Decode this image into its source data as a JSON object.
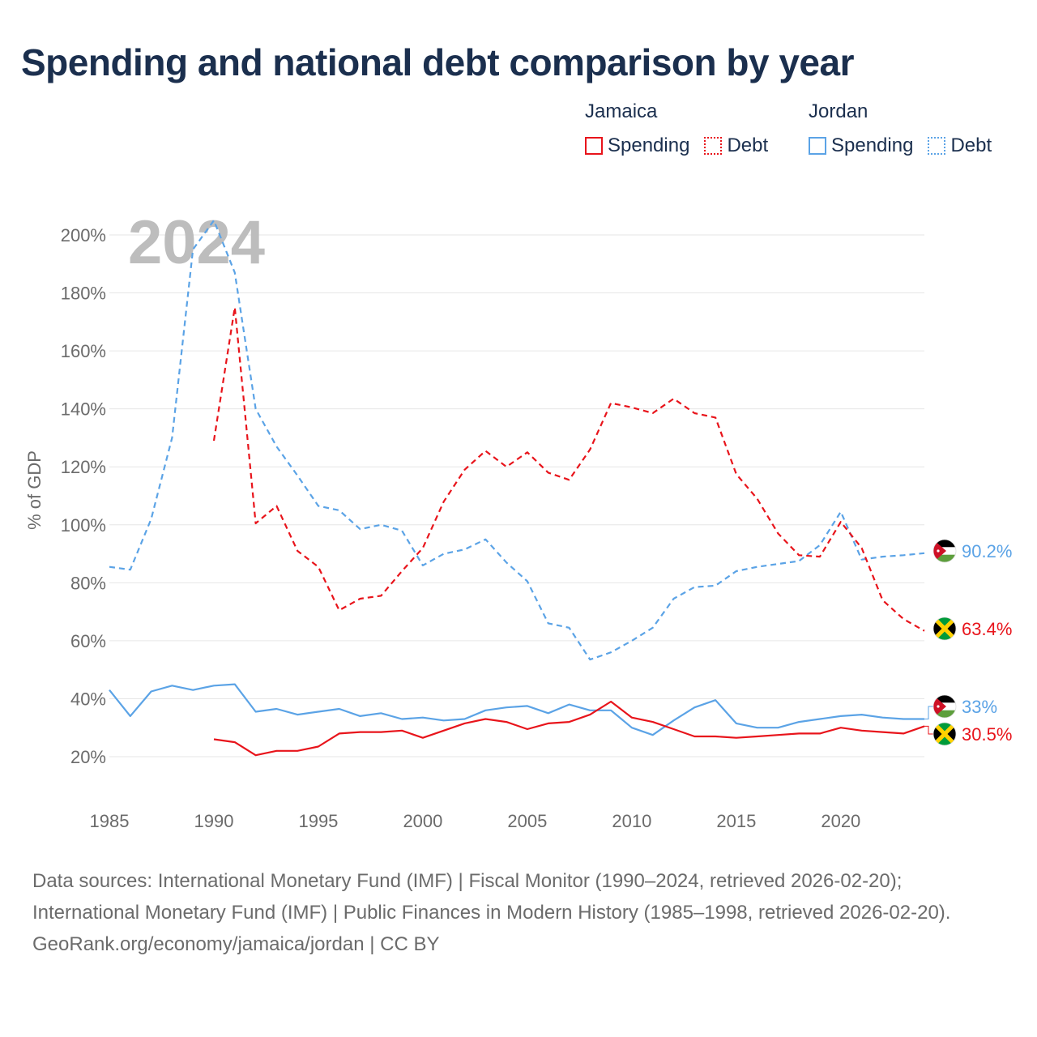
{
  "title": "Spending and national debt comparison by year",
  "legend": {
    "groups": [
      {
        "name": "Jamaica",
        "items": [
          {
            "label": "Spending",
            "color": "#e8141b",
            "style": "solid"
          },
          {
            "label": "Debt",
            "color": "#e8141b",
            "style": "dotted"
          }
        ]
      },
      {
        "name": "Jordan",
        "items": [
          {
            "label": "Spending",
            "color": "#5ba3e6",
            "style": "solid"
          },
          {
            "label": "Debt",
            "color": "#5ba3e6",
            "style": "dotted"
          }
        ]
      }
    ]
  },
  "chart_data": {
    "type": "line",
    "year_label": "2024",
    "ylabel": "% of GDP",
    "xlabel": "",
    "xlim": [
      1985,
      2024
    ],
    "ylim": [
      10,
      210
    ],
    "x_ticks": [
      1985,
      1990,
      1995,
      2000,
      2005,
      2010,
      2015,
      2020
    ],
    "y_ticks": [
      20,
      40,
      60,
      80,
      100,
      120,
      140,
      160,
      180,
      200
    ],
    "y_tick_labels": [
      "20%",
      "40%",
      "60%",
      "80%",
      "100%",
      "120%",
      "140%",
      "160%",
      "180%",
      "200%"
    ],
    "grid": true,
    "series": [
      {
        "name": "Jordan Debt",
        "country": "Jordan",
        "metric": "Debt",
        "color": "#5ba3e6",
        "dashed": true,
        "end_label": "90.2%",
        "start_year": 1985,
        "values": [
          85.5,
          84.5,
          102,
          130,
          195,
          205,
          187,
          140,
          127,
          117,
          106.5,
          105,
          98.5,
          100,
          98,
          86,
          90,
          91.5,
          95,
          87,
          80.5,
          66,
          64.5,
          53.5,
          56,
          60,
          64.5,
          74.5,
          78.5,
          79,
          84,
          85.5,
          86.5,
          87.5,
          93,
          104.5,
          88,
          89,
          89.5,
          90.2
        ]
      },
      {
        "name": "Jamaica Debt",
        "country": "Jamaica",
        "metric": "Debt",
        "color": "#e8141b",
        "dashed": true,
        "end_label": "63.4%",
        "start_year": 1990,
        "values": [
          129,
          175,
          100.5,
          106.5,
          91,
          85.5,
          70.5,
          74.5,
          75.5,
          84,
          92,
          108,
          119,
          125.5,
          120,
          125,
          118,
          115.5,
          126,
          142,
          140.5,
          138.5,
          143.5,
          138.5,
          137,
          117.5,
          109,
          97,
          89.5,
          89,
          101,
          92,
          74,
          67.5,
          63.4
        ]
      },
      {
        "name": "Jordan Spending",
        "country": "Jordan",
        "metric": "Spending",
        "color": "#5ba3e6",
        "dashed": false,
        "end_label": "33%",
        "start_year": 1985,
        "values": [
          43,
          34,
          42.5,
          44.5,
          43,
          44.5,
          45,
          35.5,
          36.5,
          34.5,
          35.5,
          36.5,
          34,
          35,
          33,
          33.5,
          32.5,
          33,
          36,
          37,
          37.5,
          35,
          38,
          36,
          36,
          30,
          27.5,
          32.5,
          37,
          39.5,
          31.5,
          30,
          30,
          32,
          33,
          34,
          34.5,
          33.5,
          33,
          33
        ]
      },
      {
        "name": "Jamaica Spending",
        "country": "Jamaica",
        "metric": "Spending",
        "color": "#e8141b",
        "dashed": false,
        "end_label": "30.5%",
        "start_year": 1990,
        "values": [
          26,
          25,
          20.5,
          22,
          22,
          23.5,
          28,
          28.5,
          28.5,
          29,
          26.5,
          29,
          31.5,
          33,
          32,
          29.5,
          31.5,
          32,
          34.5,
          39,
          33.5,
          32,
          29.5,
          27,
          27,
          26.5,
          27,
          27.5,
          28,
          28,
          30,
          29,
          28.5,
          28,
          30.5
        ]
      }
    ]
  },
  "footer": {
    "sources": "Data sources: International Monetary Fund (IMF) | Fiscal Monitor (1990–2024, retrieved 2026-02-20); International Monetary Fund (IMF) | Public Finances in Modern History (1985–1998, retrieved 2026-02-20).",
    "credit": "GeoRank.org/economy/jamaica/jordan | CC BY"
  }
}
